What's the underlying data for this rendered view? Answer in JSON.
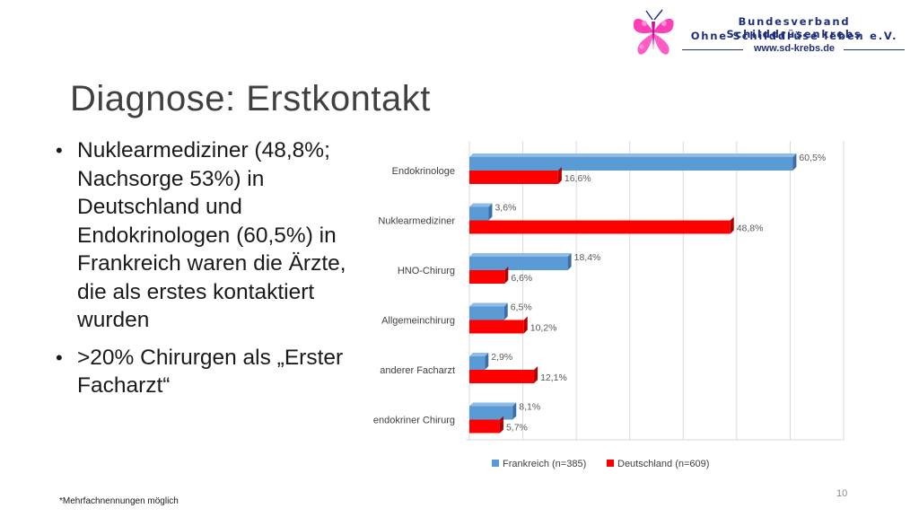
{
  "header": {
    "org_line1": "Bundesverband Schilddrüsenkrebs",
    "org_line2": "Ohne Schilddrüse leben e.V.",
    "org_url": "www.sd-krebs.de"
  },
  "slide": {
    "title": "Diagnose: Erstkontakt",
    "bullets": [
      "Nuklearmediziner (48,8%; Nachsorge 53%) in Deutschland und Endokrinologen (60,5%) in Frankreich waren die Ärzte, die als erstes kontaktiert wurden",
      ">20% Chirurgen als „Erster Facharzt“"
    ],
    "bullet_symbol": "•",
    "footnote": "*Mehrfachnennungen möglich",
    "page_number": "10"
  },
  "colors": {
    "frankreich": "#5b9bd5",
    "deutschland": "#ff0000",
    "title_text": "#404040",
    "logo_text": "#1f2f7a",
    "logo_mark": "#ff3fb4"
  },
  "chart_data": {
    "type": "bar",
    "orientation": "horizontal",
    "style": "3d",
    "categories": [
      "Endokrinologe",
      "Nuklearmediziner",
      "HNO-Chirurg",
      "Allgemeinchirurg",
      "anderer Facharzt",
      "endokriner Chirurg"
    ],
    "series": [
      {
        "name": "Frankreich (n=385)",
        "values": [
          60.5,
          3.6,
          18.4,
          6.5,
          2.9,
          8.1
        ],
        "labels": [
          "60,5%",
          "3,6%",
          "18,4%",
          "6,5%",
          "2,9%",
          "8,1%"
        ]
      },
      {
        "name": "Deutschland (n=609)",
        "values": [
          16.6,
          48.8,
          6.6,
          10.2,
          12.1,
          5.7
        ],
        "labels": [
          "16,6%",
          "48,8%",
          "6,6%",
          "10,2%",
          "12,1%",
          "5,7%"
        ]
      }
    ],
    "xlim": [
      0,
      70
    ],
    "grid": true,
    "legend_position": "bottom"
  }
}
